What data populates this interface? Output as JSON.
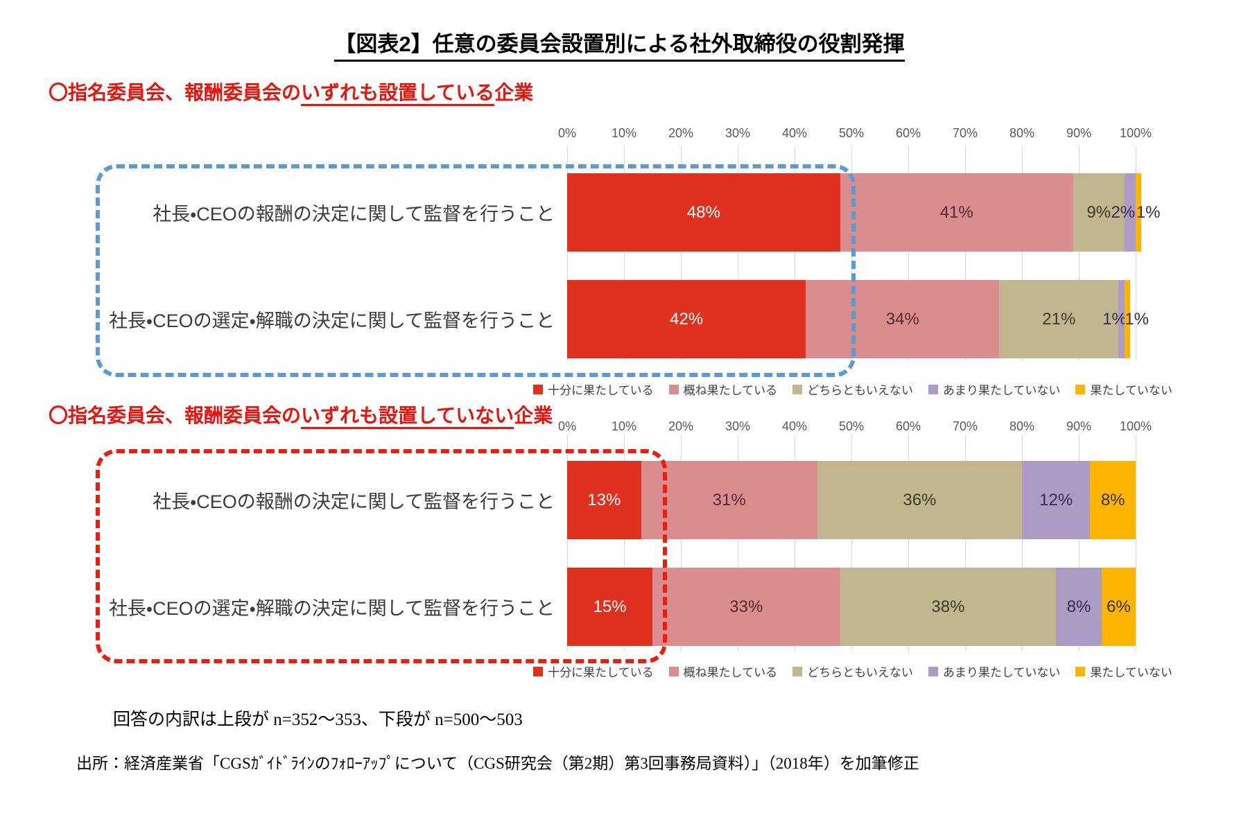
{
  "page": {
    "title": "【図表2】任意の委員会設置別による社外取締役の役割発揮",
    "footnote": "回答の内訳は上段が n=352～353、下段が n=500～503",
    "source": "出所：経済産業省「CGSｶﾞｲﾄﾞﾗｲﾝのﾌｫﾛｰｱｯﾌﾟについて（CGS研究会（第2期）第3回事務局資料）」（2018年）を加筆修正"
  },
  "legend": [
    "十分に果たしている",
    "概ね果たしている",
    "どちらともいえない",
    "あまり果たしていない",
    "果たしていない"
  ],
  "colors": {
    "segments": [
      "#e0301e",
      "#d98d8e",
      "#c0b68f",
      "#ab9bc5",
      "#ffb400"
    ],
    "segment_labels": [
      "#ffffff",
      "#54292b",
      "#3f3a22",
      "#392b52",
      "#333333"
    ],
    "heading_red": "#e8140b",
    "frame_blue": "#5b9bd5",
    "frame_red": "#ed1c0c",
    "grid": "#d9d9d9",
    "axis_text": "#595959"
  },
  "chart_data": [
    {
      "type": "bar",
      "variant": "horizontal-stacked-100pct",
      "section_title": {
        "pre": "〇指名委員会、報酬委員会の",
        "underlined": "いずれも設置している",
        "post": "企業"
      },
      "categories": [
        "社長・CEOの報酬の決定に関して監督を行うこと",
        "社長・CEOの選定・解職の決定に関して監督を行うこと"
      ],
      "series": [
        {
          "name": "十分に果たしている",
          "values": [
            48,
            42
          ]
        },
        {
          "name": "概ね果たしている",
          "values": [
            41,
            34
          ]
        },
        {
          "name": "どちらともいえない",
          "values": [
            9,
            21
          ]
        },
        {
          "name": "あまり果たしていない",
          "values": [
            2,
            1
          ]
        },
        {
          "name": "果たしていない",
          "values": [
            1,
            1
          ]
        }
      ],
      "x_ticks": [
        "0%",
        "10%",
        "20%",
        "30%",
        "40%",
        "50%",
        "60%",
        "70%",
        "80%",
        "90%",
        "100%"
      ],
      "xlim": [
        0,
        100
      ],
      "value_suffix": "%",
      "grid": true,
      "legend_position": "bottom",
      "highlight_frame": "blue"
    },
    {
      "type": "bar",
      "variant": "horizontal-stacked-100pct",
      "section_title": {
        "pre": "〇指名委員会、報酬委員会の",
        "underlined": "いずれも設置していない",
        "post": "企業"
      },
      "categories": [
        "社長・CEOの報酬の決定に関して監督を行うこと",
        "社長・CEOの選定・解職の決定に関して監督を行うこと"
      ],
      "series": [
        {
          "name": "十分に果たしている",
          "values": [
            13,
            15
          ]
        },
        {
          "name": "概ね果たしている",
          "values": [
            31,
            33
          ]
        },
        {
          "name": "どちらともいえない",
          "values": [
            36,
            38
          ]
        },
        {
          "name": "あまり果たしていない",
          "values": [
            12,
            8
          ]
        },
        {
          "name": "果たしていない",
          "values": [
            8,
            6
          ]
        }
      ],
      "x_ticks": [
        "0%",
        "10%",
        "20%",
        "30%",
        "40%",
        "50%",
        "60%",
        "70%",
        "80%",
        "90%",
        "100%"
      ],
      "xlim": [
        0,
        100
      ],
      "value_suffix": "%",
      "grid": true,
      "legend_position": "bottom",
      "highlight_frame": "red"
    }
  ]
}
